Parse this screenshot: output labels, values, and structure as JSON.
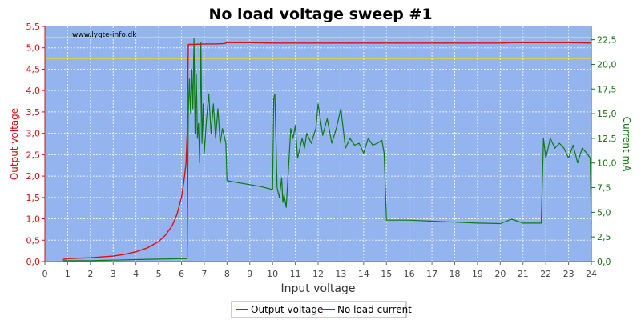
{
  "chart_data": {
    "type": "line",
    "title": "No load voltage sweep #1",
    "xlabel": "Input voltage",
    "ylabel_left": "Output voltage",
    "ylabel_right": "Current mA",
    "watermark": "www.lygte-info.dk",
    "xlim": [
      0,
      24
    ],
    "ylim_left": [
      0,
      5.5
    ],
    "ylim_right": [
      0,
      23.85
    ],
    "x_ticks": [
      "0",
      "1",
      "2",
      "3",
      "4",
      "5",
      "6",
      "7",
      "8",
      "9",
      "10",
      "11",
      "12",
      "13",
      "14",
      "15",
      "16",
      "17",
      "18",
      "19",
      "20",
      "21",
      "22",
      "23",
      "24"
    ],
    "y_left_ticks": [
      "0,0",
      "0,5",
      "1,0",
      "1,5",
      "2,0",
      "2,5",
      "3,0",
      "3,5",
      "4,0",
      "4,5",
      "5,0",
      "5,5"
    ],
    "y_right_ticks": [
      "0,0",
      "2,5",
      "5,0",
      "7,5",
      "10,0",
      "12,5",
      "15,0",
      "17,5",
      "20,0",
      "22,5"
    ],
    "reference_lines_left": [
      5.25,
      4.75
    ],
    "grid": true,
    "legend_position": "bottom",
    "colors": {
      "plot_bg": "#94b4ef",
      "voltage": "#dd1010",
      "current": "#0c7a12",
      "reference": "#e8e800",
      "grid": "#ffffff",
      "left_axis": "#d01010",
      "right_axis": "#157015"
    },
    "series": [
      {
        "name": "Output voltage",
        "axis": "left",
        "x": [
          0.8,
          1.0,
          1.5,
          2.0,
          2.5,
          3.0,
          3.5,
          4.0,
          4.5,
          5.0,
          5.3,
          5.6,
          5.8,
          6.0,
          6.1,
          6.2,
          6.25,
          6.3,
          6.5,
          7.0,
          7.5,
          7.9,
          8.0,
          9.0,
          10.0,
          11.0,
          12.0,
          13.0,
          14.0,
          15.0,
          16.0,
          17.0,
          18.0,
          19.0,
          20.0,
          20.5,
          21.0,
          22.0,
          23.0,
          24.0
        ],
        "y": [
          0.05,
          0.07,
          0.08,
          0.09,
          0.11,
          0.13,
          0.17,
          0.23,
          0.32,
          0.47,
          0.62,
          0.85,
          1.1,
          1.5,
          1.85,
          2.3,
          3.0,
          5.08,
          5.08,
          5.09,
          5.09,
          5.1,
          5.12,
          5.12,
          5.11,
          5.11,
          5.11,
          5.11,
          5.11,
          5.11,
          5.11,
          5.11,
          5.11,
          5.11,
          5.11,
          5.12,
          5.12,
          5.12,
          5.12,
          5.11
        ]
      },
      {
        "name": "No load current",
        "axis": "right",
        "x": [
          0.8,
          2.0,
          3.0,
          4.0,
          5.0,
          6.0,
          6.2,
          6.25,
          6.3,
          6.35,
          6.4,
          6.45,
          6.5,
          6.55,
          6.6,
          6.65,
          6.7,
          6.75,
          6.8,
          6.85,
          6.9,
          6.95,
          7.0,
          7.1,
          7.2,
          7.3,
          7.4,
          7.5,
          7.6,
          7.7,
          7.8,
          7.95,
          8.0,
          8.5,
          9.0,
          9.5,
          10.0,
          10.05,
          10.1,
          10.15,
          10.2,
          10.3,
          10.4,
          10.45,
          10.5,
          10.6,
          10.7,
          10.8,
          10.9,
          11.0,
          11.1,
          11.2,
          11.3,
          11.4,
          11.5,
          11.7,
          11.9,
          12.0,
          12.2,
          12.4,
          12.6,
          12.8,
          13.0,
          13.2,
          13.4,
          13.6,
          13.8,
          14.0,
          14.2,
          14.4,
          14.6,
          14.8,
          14.9,
          15.0,
          15.5,
          16.0,
          17.0,
          18.0,
          19.0,
          20.0,
          20.5,
          21.0,
          21.8,
          21.9,
          22.0,
          22.2,
          22.4,
          22.6,
          22.8,
          23.0,
          23.2,
          23.4,
          23.6,
          23.8,
          23.95,
          24.0
        ],
        "y": [
          0.1,
          0.1,
          0.15,
          0.2,
          0.25,
          0.3,
          0.3,
          0.3,
          15.2,
          18.5,
          15.0,
          19.5,
          15.5,
          22.6,
          13.0,
          19.0,
          12.5,
          14.0,
          10.0,
          22.2,
          12.0,
          16.0,
          11.0,
          14.5,
          17.0,
          13.0,
          16.0,
          12.5,
          15.5,
          12.0,
          13.5,
          12.0,
          8.2,
          8.0,
          7.8,
          7.6,
          7.3,
          16.5,
          17.0,
          12.5,
          7.5,
          6.5,
          8.5,
          6.0,
          6.8,
          5.5,
          9.5,
          13.5,
          12.5,
          13.8,
          10.5,
          11.5,
          12.5,
          11.5,
          13.0,
          12.0,
          13.5,
          16.0,
          12.8,
          14.5,
          12.0,
          13.5,
          15.5,
          11.5,
          12.5,
          11.8,
          12.0,
          11.0,
          12.5,
          11.8,
          12.0,
          12.3,
          11.0,
          4.2,
          4.2,
          4.2,
          4.1,
          4.0,
          3.9,
          3.85,
          4.3,
          3.9,
          3.9,
          12.5,
          10.5,
          12.5,
          11.5,
          12.0,
          11.5,
          10.5,
          11.8,
          10.0,
          11.5,
          11.0,
          10.5,
          3.8
        ]
      }
    ]
  },
  "legend": {
    "items": [
      {
        "label": "Output voltage",
        "color": "#dd1010"
      },
      {
        "label": "No load current",
        "color": "#0c7a12"
      }
    ]
  }
}
